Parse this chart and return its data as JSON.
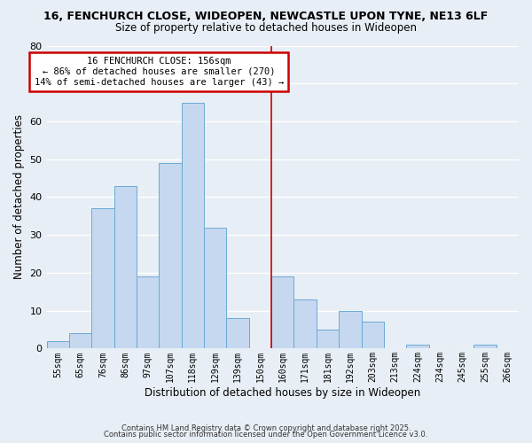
{
  "title1": "16, FENCHURCH CLOSE, WIDEOPEN, NEWCASTLE UPON TYNE, NE13 6LF",
  "title2": "Size of property relative to detached houses in Wideopen",
  "xlabel": "Distribution of detached houses by size in Wideopen",
  "ylabel": "Number of detached properties",
  "bin_labels": [
    "55sqm",
    "65sqm",
    "76sqm",
    "86sqm",
    "97sqm",
    "107sqm",
    "118sqm",
    "129sqm",
    "139sqm",
    "150sqm",
    "160sqm",
    "171sqm",
    "181sqm",
    "192sqm",
    "203sqm",
    "213sqm",
    "224sqm",
    "234sqm",
    "245sqm",
    "255sqm",
    "266sqm"
  ],
  "bar_values": [
    2,
    4,
    37,
    43,
    19,
    49,
    65,
    32,
    8,
    0,
    19,
    13,
    5,
    10,
    7,
    0,
    1,
    0,
    0,
    1,
    0
  ],
  "bar_color": "#c5d8f0",
  "bar_edge_color": "#6aaad4",
  "vertical_line_x": 9.5,
  "annotation_title": "16 FENCHURCH CLOSE: 156sqm",
  "annotation_line1": "← 86% of detached houses are smaller (270)",
  "annotation_line2": "14% of semi-detached houses are larger (43) →",
  "annotation_box_color": "#ffffff",
  "annotation_box_edge": "#cc0000",
  "vline_color": "#cc0000",
  "ylim": [
    0,
    80
  ],
  "yticks": [
    0,
    10,
    20,
    30,
    40,
    50,
    60,
    70,
    80
  ],
  "background_color": "#e8eef5",
  "grid_color": "#ffffff",
  "footer1": "Contains HM Land Registry data © Crown copyright and database right 2025.",
  "footer2": "Contains public sector information licensed under the Open Government Licence v3.0."
}
